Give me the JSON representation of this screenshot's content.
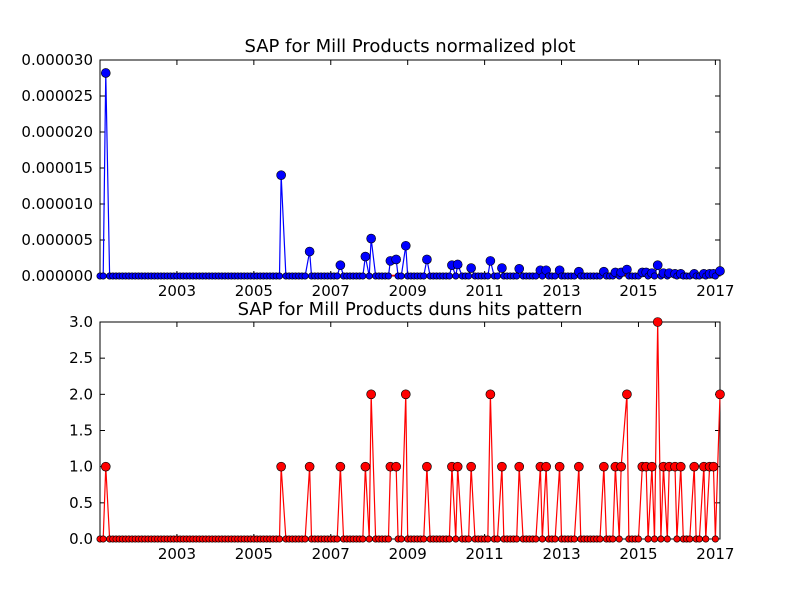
{
  "chart_data": [
    {
      "type": "line",
      "title": "SAP for Mill Products normalized plot",
      "xlabel": "",
      "ylabel": "",
      "xlim": [
        2001.0,
        2017.12
      ],
      "ylim": [
        0,
        3e-05
      ],
      "x_ticks": [
        2003,
        2005,
        2007,
        2009,
        2011,
        2013,
        2015,
        2017
      ],
      "x_tick_labels": [
        "2003",
        "2005",
        "2007",
        "2009",
        "2011",
        "2013",
        "2015",
        "2017"
      ],
      "y_ticks": [
        0,
        5e-06,
        1e-05,
        1.5e-05,
        2e-05,
        2.5e-05,
        3e-05
      ],
      "y_tick_labels": [
        "0.000000",
        "0.000005",
        "0.000010",
        "0.000015",
        "0.000020",
        "0.000025",
        "0.000030"
      ],
      "grid": false,
      "colors": {
        "series": "#0000ff",
        "baseline": "#ff0000"
      },
      "series": [
        {
          "marker": "circle",
          "points": [
            [
              2001.15,
              2.82e-05
            ],
            [
              2005.71,
              1.4e-05
            ],
            [
              2006.45,
              3.4e-06
            ],
            [
              2007.25,
              1.5e-06
            ],
            [
              2007.9,
              2.7e-06
            ],
            [
              2008.05,
              5.2e-06
            ],
            [
              2008.55,
              2.1e-06
            ],
            [
              2008.7,
              2.3e-06
            ],
            [
              2008.95,
              4.2e-06
            ],
            [
              2009.5,
              2.3e-06
            ],
            [
              2010.15,
              1.5e-06
            ],
            [
              2010.3,
              1.6e-06
            ],
            [
              2010.65,
              1.1e-06
            ],
            [
              2011.15,
              2.1e-06
            ],
            [
              2011.45,
              1.1e-06
            ],
            [
              2011.9,
              1e-06
            ],
            [
              2012.45,
              8e-07
            ],
            [
              2012.6,
              8e-07
            ],
            [
              2012.95,
              8e-07
            ],
            [
              2013.45,
              6e-07
            ],
            [
              2014.1,
              6e-07
            ],
            [
              2014.4,
              5e-07
            ],
            [
              2014.55,
              5e-07
            ],
            [
              2014.7,
              9e-07
            ],
            [
              2015.1,
              5e-07
            ],
            [
              2015.2,
              5e-07
            ],
            [
              2015.35,
              4e-07
            ],
            [
              2015.5,
              1.5e-06
            ],
            [
              2015.65,
              4e-07
            ],
            [
              2015.8,
              4e-07
            ],
            [
              2015.95,
              3e-07
            ],
            [
              2016.1,
              3e-07
            ],
            [
              2016.45,
              3e-07
            ],
            [
              2016.7,
              3e-07
            ],
            [
              2016.85,
              3e-07
            ],
            [
              2016.95,
              3e-07
            ],
            [
              2017.05,
              4e-07
            ],
            [
              2017.12,
              7e-07
            ]
          ]
        }
      ]
    },
    {
      "type": "line",
      "title": "SAP for Mill Products duns hits pattern",
      "xlabel": "",
      "ylabel": "",
      "xlim": [
        2001.0,
        2017.12
      ],
      "ylim": [
        0,
        3
      ],
      "x_ticks": [
        2003,
        2005,
        2007,
        2009,
        2011,
        2013,
        2015,
        2017
      ],
      "x_tick_labels": [
        "2003",
        "2005",
        "2007",
        "2009",
        "2011",
        "2013",
        "2015",
        "2017"
      ],
      "y_ticks": [
        0,
        0.5,
        1,
        1.5,
        2,
        2.5,
        3
      ],
      "y_tick_labels": [
        "0.0",
        "0.5",
        "1.0",
        "1.5",
        "2.0",
        "2.5",
        "3.0"
      ],
      "grid": false,
      "colors": {
        "series": "#ff0000"
      },
      "series": [
        {
          "marker": "circle",
          "points": [
            [
              2001.15,
              1
            ],
            [
              2005.71,
              1
            ],
            [
              2006.45,
              1
            ],
            [
              2007.25,
              1
            ],
            [
              2007.9,
              1
            ],
            [
              2008.05,
              2
            ],
            [
              2008.55,
              1
            ],
            [
              2008.7,
              1
            ],
            [
              2008.95,
              2
            ],
            [
              2009.5,
              1
            ],
            [
              2010.15,
              1
            ],
            [
              2010.3,
              1
            ],
            [
              2010.65,
              1
            ],
            [
              2011.15,
              2
            ],
            [
              2011.45,
              1
            ],
            [
              2011.9,
              1
            ],
            [
              2012.45,
              1
            ],
            [
              2012.6,
              1
            ],
            [
              2012.95,
              1
            ],
            [
              2013.45,
              1
            ],
            [
              2014.1,
              1
            ],
            [
              2014.4,
              1
            ],
            [
              2014.55,
              1
            ],
            [
              2014.7,
              2
            ],
            [
              2015.1,
              1
            ],
            [
              2015.2,
              1
            ],
            [
              2015.35,
              1
            ],
            [
              2015.5,
              3
            ],
            [
              2015.65,
              1
            ],
            [
              2015.8,
              1
            ],
            [
              2015.95,
              1
            ],
            [
              2016.1,
              1
            ],
            [
              2016.45,
              1
            ],
            [
              2016.7,
              1
            ],
            [
              2016.85,
              1
            ],
            [
              2016.95,
              1
            ],
            [
              2017.05,
              1
            ],
            [
              2017.12,
              2
            ]
          ]
        }
      ]
    }
  ]
}
